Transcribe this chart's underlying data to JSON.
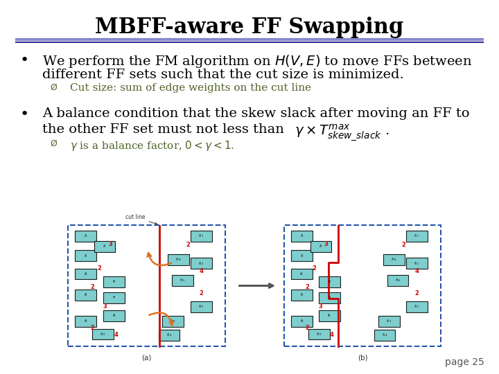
{
  "title": "MBFF-aware FF Swapping",
  "title_fontsize": 22,
  "title_bold": true,
  "bg_color": "#ffffff",
  "title_underline_color1": "#8888cc",
  "title_underline_color2": "#000080",
  "bullet1_line1": "We perform the FM algorithm on $H(V, E)$ to move FFs between",
  "bullet1_line2": "different FF sets such that the cut size is minimized.",
  "bullet1_sub": "Cut size: sum of edge weights on the cut line",
  "bullet2_line1": "A balance condition that the skew slack after moving an FF to",
  "bullet2_line2": "the other FF set must not less than ",
  "bullet2_sub": " is a balance factor, $0 < \\gamma < 1$.",
  "sub_color": "#4f6228",
  "main_text_color": "#000000",
  "main_fontsize": 14,
  "sub_fontsize": 11,
  "page_label": "page 25",
  "page_fontsize": 10
}
